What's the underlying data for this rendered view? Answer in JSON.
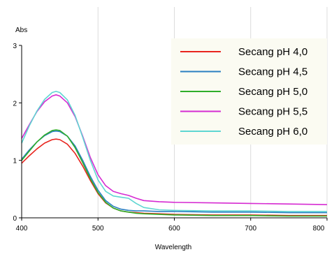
{
  "chart_data": {
    "type": "line",
    "title": "",
    "xlabel": "Wavelength",
    "ylabel": "Abs",
    "xlim": [
      400,
      800
    ],
    "ylim": [
      0,
      3
    ],
    "x_ticks": [
      400,
      500,
      600,
      700,
      800
    ],
    "x_tick_labels": [
      "400",
      "500",
      "600",
      "700",
      "800"
    ],
    "y_ticks": [
      0,
      1,
      2,
      3
    ],
    "y_tick_labels": [
      "0",
      "1",
      "2",
      "3"
    ],
    "grid": "vertical",
    "legend_position": "top-right",
    "x": [
      400,
      410,
      420,
      430,
      440,
      445,
      450,
      460,
      470,
      480,
      490,
      500,
      510,
      520,
      530,
      540,
      550,
      560,
      580,
      600,
      650,
      700,
      750,
      800
    ],
    "series": [
      {
        "name": "Secang pH 4,0",
        "color": "#e8251e",
        "values": [
          0.95,
          1.08,
          1.2,
          1.3,
          1.36,
          1.37,
          1.36,
          1.28,
          1.12,
          0.9,
          0.65,
          0.42,
          0.26,
          0.17,
          0.12,
          0.1,
          0.09,
          0.08,
          0.07,
          0.06,
          0.05,
          0.05,
          0.04,
          0.04
        ]
      },
      {
        "name": "Secang pH 4,5",
        "color": "#2a7fc1",
        "values": [
          1.02,
          1.18,
          1.32,
          1.43,
          1.5,
          1.51,
          1.5,
          1.42,
          1.25,
          1.0,
          0.72,
          0.48,
          0.3,
          0.2,
          0.15,
          0.13,
          0.12,
          0.12,
          0.11,
          0.11,
          0.1,
          0.1,
          0.09,
          0.09
        ]
      },
      {
        "name": "Secang pH 5,0",
        "color": "#2fae2a",
        "values": [
          1.0,
          1.16,
          1.32,
          1.44,
          1.52,
          1.53,
          1.52,
          1.42,
          1.22,
          0.96,
          0.68,
          0.44,
          0.27,
          0.17,
          0.12,
          0.1,
          0.08,
          0.07,
          0.06,
          0.05,
          0.04,
          0.04,
          0.03,
          0.03
        ]
      },
      {
        "name": "Secang pH 5,5",
        "color": "#d62bd2",
        "values": [
          1.38,
          1.62,
          1.85,
          2.02,
          2.12,
          2.14,
          2.12,
          2.0,
          1.76,
          1.42,
          1.05,
          0.75,
          0.56,
          0.46,
          0.42,
          0.39,
          0.34,
          0.3,
          0.28,
          0.27,
          0.26,
          0.25,
          0.24,
          0.23
        ]
      },
      {
        "name": "Secang pH 6,0",
        "color": "#5fd6d2",
        "values": [
          1.3,
          1.6,
          1.86,
          2.06,
          2.18,
          2.2,
          2.18,
          2.05,
          1.78,
          1.4,
          1.0,
          0.66,
          0.46,
          0.38,
          0.36,
          0.34,
          0.25,
          0.18,
          0.14,
          0.13,
          0.12,
          0.12,
          0.11,
          0.11
        ]
      }
    ]
  }
}
